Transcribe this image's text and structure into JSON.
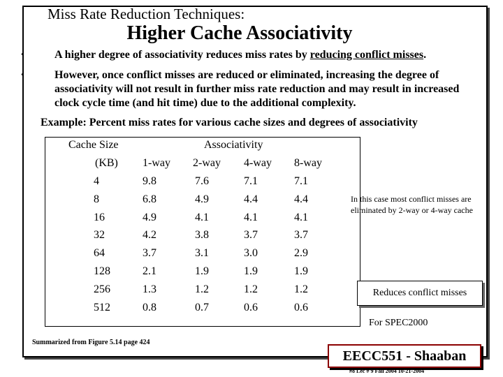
{
  "slide": {
    "subtitle": "Miss Rate Reduction Techniques:",
    "title": "Higher Cache Associativity",
    "bullets": [
      {
        "pre": "A higher degree of associativity reduces miss rates by ",
        "underlined": "reducing conflict misses",
        "post": "."
      },
      {
        "text": "However, once conflict misses are reduced or eliminated, increasing the degree of associativity will not result in further miss rate reduction and may result in increased clock cycle time (and hit time) due to the additional complexity."
      }
    ],
    "bullet_glyph": "•",
    "example": "Example: Percent miss rates for various cache sizes and degrees of associativity"
  },
  "table": {
    "size_header_line1": "Cache Size",
    "size_header_line2": "(KB)",
    "assoc_header": "Associativity",
    "columns": [
      "1-way",
      "2-way",
      "4-way",
      "8-way"
    ],
    "rows": [
      {
        "size": "4",
        "values": [
          "9.8",
          "7.6",
          "7.1",
          "7.1"
        ]
      },
      {
        "size": "8",
        "values": [
          "6.8",
          "4.9",
          "4.4",
          "4.4"
        ]
      },
      {
        "size": "16",
        "values": [
          "4.9",
          "4.1",
          "4.1",
          "4.1"
        ]
      },
      {
        "size": "32",
        "values": [
          "4.2",
          "3.8",
          "3.7",
          "3.7"
        ]
      },
      {
        "size": "64",
        "values": [
          "3.7",
          "3.1",
          "3.0",
          "2.9"
        ]
      },
      {
        "size": "128",
        "values": [
          "2.1",
          "1.9",
          "1.9",
          "1.9"
        ]
      },
      {
        "size": "256",
        "values": [
          "1.3",
          "1.2",
          "1.2",
          "1.2"
        ]
      },
      {
        "size": "512",
        "values": [
          "0.8",
          "0.7",
          "0.6",
          "0.6"
        ]
      }
    ]
  },
  "notes": {
    "conflict_note": "In this case most conflict misses are eliminated by 2-way or 4-way cache",
    "reduces": "Reduces conflict misses",
    "spec": "For SPEC2000",
    "summarized": "Summarized from Figure 5.14 page 424"
  },
  "footer": {
    "brand": "EECC551 - Shaaban",
    "meta": "#8  Lec # 9  Fall 2004  10-21-2004"
  }
}
